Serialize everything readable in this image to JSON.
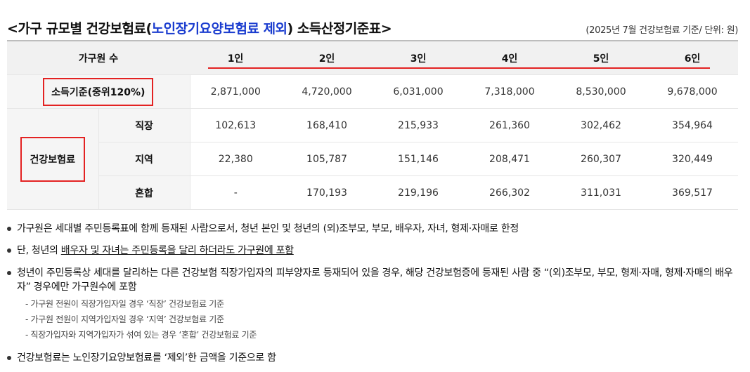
{
  "title": {
    "prefix": "<가구 규모별 건강보험료(",
    "highlight": "노인장기요양보험료 제외",
    "suffix": ") 소득산정기준표>",
    "note": "(2025년 7월 건강보험료 기준/ 단위: 원)"
  },
  "table": {
    "header_label": "가구원 수",
    "columns": [
      "1인",
      "2인",
      "3인",
      "4인",
      "5인",
      "6인"
    ],
    "income_label": "소득기준(중위120%)",
    "income_values": [
      "2,871,000",
      "4,720,000",
      "6,031,000",
      "7,318,000",
      "8,530,000",
      "9,678,000"
    ],
    "insurance_label": "건강보험료",
    "rows": [
      {
        "label": "직장",
        "values": [
          "102,613",
          "168,410",
          "215,933",
          "261,360",
          "302,462",
          "354,964"
        ]
      },
      {
        "label": "지역",
        "values": [
          "22,380",
          "105,787",
          "151,146",
          "208,471",
          "260,307",
          "320,449"
        ]
      },
      {
        "label": "혼합",
        "values": [
          "-",
          "170,193",
          "219,196",
          "266,302",
          "311,031",
          "369,517"
        ]
      }
    ]
  },
  "notes": {
    "n1": "가구원은 세대별 주민등록표에 함께 등재된 사람으로서, 청년 본인 및 청년의 (외)조부모, 부모, 배우자, 자녀, 형제·자매로 한정",
    "n2_prefix": "단, 청년의 ",
    "n2_underlined": "배우자 및 자녀는 주민등록을 달리 하더라도 가구원에 포함",
    "n3": "청년이 주민등록상 세대를 달리하는 다른 건강보험 직장가입자의 피부양자로 등재되어 있을 경우, 해당 건강보험증에 등재된 사람 중 “(외)조부모, 부모, 형제·자매, 형제·자매의 배우자” 경우에만 가구원수에 포함",
    "sub1": "- 가구원 전원이 직장가입자일 경우 ‘직장’ 건강보험료 기준",
    "sub2": "- 가구원 전원이 지역가입자일 경우 ‘지역’ 건강보험료 기준",
    "sub3": "- 직장가입자와 지역가입자가 섞여 있는 경우 ‘혼합’ 건강보험료 기준",
    "n4": "건강보험료는 노인장기요양보험료를 ‘제외’한 금액을 기준으로 함"
  },
  "colors": {
    "accent_red": "#e32222",
    "title_blue": "#1a3ccf"
  }
}
